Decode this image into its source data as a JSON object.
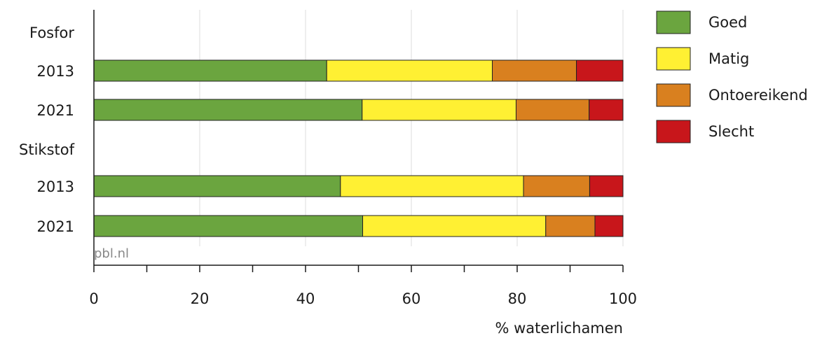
{
  "chart_data": {
    "type": "bar",
    "orientation": "horizontal",
    "stacked": true,
    "xlabel": "% waterlichamen",
    "xlim": [
      0,
      100
    ],
    "xticks": [
      0,
      20,
      40,
      60,
      80,
      100
    ],
    "xtick_labels": [
      "0",
      "20",
      "40",
      "60",
      "80",
      "100"
    ],
    "grid": "vertical",
    "legend_position": "right",
    "source": "pbl.nl",
    "groups": [
      {
        "label": "Fosfor",
        "rows": [
          {
            "label": "2013",
            "values": [
              44.0,
              31.3,
              15.9,
              8.8
            ]
          },
          {
            "label": "2021",
            "values": [
              50.7,
              29.1,
              13.8,
              6.4
            ]
          }
        ]
      },
      {
        "label": "Stikstof",
        "rows": [
          {
            "label": "2013",
            "values": [
              46.6,
              34.6,
              12.5,
              6.3
            ]
          },
          {
            "label": "2021",
            "values": [
              50.8,
              34.6,
              9.3,
              5.3
            ]
          }
        ]
      }
    ],
    "series": [
      {
        "name": "Goed",
        "color": "#6ba53f"
      },
      {
        "name": "Matig",
        "color": "#fff033"
      },
      {
        "name": "Ontoereikend",
        "color": "#d9801f"
      },
      {
        "name": "Slecht",
        "color": "#c8161b"
      }
    ]
  }
}
